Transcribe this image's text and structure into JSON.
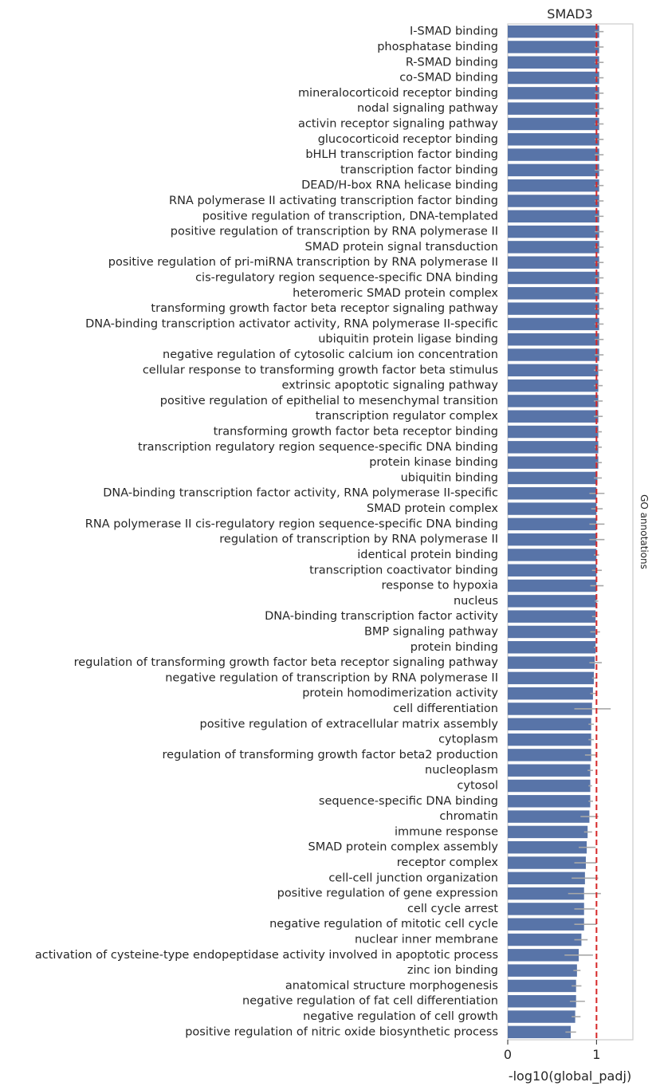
{
  "chart_data": {
    "type": "bar",
    "orientation": "horizontal",
    "title": "SMAD3",
    "xlabel": "-log10(global_padj)",
    "right_label": "GO annotations",
    "xlim": [
      0,
      1.41
    ],
    "xticks": [
      0,
      1
    ],
    "xtick_labels": [
      "0",
      "1"
    ],
    "reference_line": {
      "x": 1.0,
      "color": "#d62728",
      "style": "dashed"
    },
    "bar_color": "#5874a8",
    "errorbar_color": "#a8a8a8",
    "grid": false,
    "categories": [
      "I-SMAD binding",
      "phosphatase binding",
      "R-SMAD binding",
      "co-SMAD binding",
      "mineralocorticoid receptor binding",
      "nodal signaling pathway",
      "activin receptor signaling pathway",
      "glucocorticoid receptor binding",
      "bHLH transcription factor binding",
      "transcription factor binding",
      "DEAD/H-box RNA helicase binding",
      "RNA polymerase II activating transcription factor binding",
      "positive regulation of transcription, DNA-templated",
      "positive regulation of transcription by RNA polymerase II",
      "SMAD protein signal transduction",
      "positive regulation of pri-miRNA transcription by RNA polymerase II",
      "cis-regulatory region sequence-specific DNA binding",
      "heteromeric SMAD protein complex",
      "transforming growth factor beta receptor signaling pathway",
      "DNA-binding transcription activator activity, RNA polymerase II-specific",
      "ubiquitin protein ligase binding",
      "negative regulation of cytosolic calcium ion concentration",
      "cellular response to transforming growth factor beta stimulus",
      "extrinsic apoptotic signaling pathway",
      "positive regulation of epithelial to mesenchymal transition",
      "transcription regulator complex",
      "transforming growth factor beta receptor binding",
      "transcription regulatory region sequence-specific DNA binding",
      "protein kinase binding",
      "ubiquitin binding",
      "DNA-binding transcription factor activity, RNA polymerase II-specific",
      "SMAD protein complex",
      "RNA polymerase II cis-regulatory region sequence-specific DNA binding",
      "regulation of transcription by RNA polymerase II",
      "identical protein binding",
      "transcription coactivator binding",
      "response to hypoxia",
      "nucleus",
      "DNA-binding transcription factor activity",
      "BMP signaling pathway",
      "protein binding",
      "regulation of transforming growth factor beta receptor signaling pathway",
      "negative regulation of transcription by RNA polymerase II",
      "protein homodimerization activity",
      "cell differentiation",
      "positive regulation of extracellular matrix assembly",
      "cytoplasm",
      "regulation of transforming growth factor beta2 production",
      "nucleoplasm",
      "cytosol",
      "sequence-specific DNA binding",
      "chromatin",
      "immune response",
      "SMAD protein complex assembly",
      "receptor complex",
      "cell-cell junction organization",
      "positive regulation of gene expression",
      "cell cycle arrest",
      "negative regulation of mitotic cell cycle",
      "nuclear inner membrane",
      "activation of cysteine-type endopeptidase activity involved in apoptotic process",
      "zinc ion binding",
      "anatomical structure morphogenesis",
      "negative regulation of fat cell differentiation",
      "negative regulation of cell growth",
      "positive regulation of nitric oxide biosynthetic process"
    ],
    "values": [
      1.03,
      1.03,
      1.03,
      1.03,
      1.03,
      1.03,
      1.03,
      1.03,
      1.03,
      1.03,
      1.03,
      1.03,
      1.03,
      1.03,
      1.03,
      1.03,
      1.03,
      1.03,
      1.03,
      1.03,
      1.03,
      1.03,
      1.02,
      1.02,
      1.02,
      1.02,
      1.02,
      1.02,
      1.02,
      1.01,
      1.0,
      1.0,
      1.0,
      1.0,
      1.0,
      1.0,
      1.0,
      1.0,
      0.99,
      0.99,
      0.99,
      0.98,
      0.97,
      0.96,
      0.95,
      0.94,
      0.94,
      0.94,
      0.93,
      0.93,
      0.93,
      0.92,
      0.9,
      0.89,
      0.88,
      0.87,
      0.86,
      0.86,
      0.86,
      0.83,
      0.8,
      0.78,
      0.77,
      0.77,
      0.76,
      0.71
    ],
    "errors": [
      [
        0.98,
        1.08
      ],
      [
        0.98,
        1.08
      ],
      [
        0.98,
        1.08
      ],
      [
        0.98,
        1.08
      ],
      [
        0.98,
        1.08
      ],
      [
        0.98,
        1.08
      ],
      [
        0.98,
        1.08
      ],
      [
        0.98,
        1.08
      ],
      [
        0.98,
        1.08
      ],
      [
        0.98,
        1.08
      ],
      [
        0.98,
        1.08
      ],
      [
        0.98,
        1.08
      ],
      [
        0.98,
        1.08
      ],
      [
        0.98,
        1.08
      ],
      [
        0.98,
        1.08
      ],
      [
        0.98,
        1.08
      ],
      [
        0.98,
        1.08
      ],
      [
        0.98,
        1.08
      ],
      [
        0.98,
        1.08
      ],
      [
        0.98,
        1.08
      ],
      [
        0.98,
        1.08
      ],
      [
        0.98,
        1.08
      ],
      [
        0.97,
        1.07
      ],
      [
        0.97,
        1.07
      ],
      [
        0.97,
        1.07
      ],
      [
        0.97,
        1.07
      ],
      [
        0.99,
        1.06
      ],
      [
        0.98,
        1.06
      ],
      [
        0.99,
        1.06
      ],
      [
        0.97,
        1.06
      ],
      [
        0.92,
        1.09
      ],
      [
        0.94,
        1.07
      ],
      [
        0.92,
        1.09
      ],
      [
        0.92,
        1.09
      ],
      [
        0.97,
        1.03
      ],
      [
        0.95,
        1.06
      ],
      [
        0.93,
        1.08
      ],
      [
        0.98,
        1.02
      ],
      [
        0.95,
        1.01
      ],
      [
        0.93,
        1.04
      ],
      [
        0.97,
        1.01
      ],
      [
        0.92,
        1.06
      ],
      [
        0.95,
        1.0
      ],
      [
        0.93,
        1.0
      ],
      [
        0.75,
        1.16
      ],
      [
        0.91,
        0.97
      ],
      [
        0.91,
        0.97
      ],
      [
        0.87,
        1.0
      ],
      [
        0.9,
        0.96
      ],
      [
        0.91,
        0.95
      ],
      [
        0.91,
        0.96
      ],
      [
        0.82,
        1.02
      ],
      [
        0.86,
        0.95
      ],
      [
        0.8,
        0.99
      ],
      [
        0.75,
        1.0
      ],
      [
        0.72,
        1.02
      ],
      [
        0.68,
        1.05
      ],
      [
        0.75,
        0.98
      ],
      [
        0.75,
        1.0
      ],
      [
        0.75,
        0.9
      ],
      [
        0.64,
        0.96
      ],
      [
        0.74,
        0.82
      ],
      [
        0.72,
        0.83
      ],
      [
        0.7,
        0.87
      ],
      [
        0.72,
        0.82
      ],
      [
        0.65,
        0.77
      ]
    ]
  }
}
